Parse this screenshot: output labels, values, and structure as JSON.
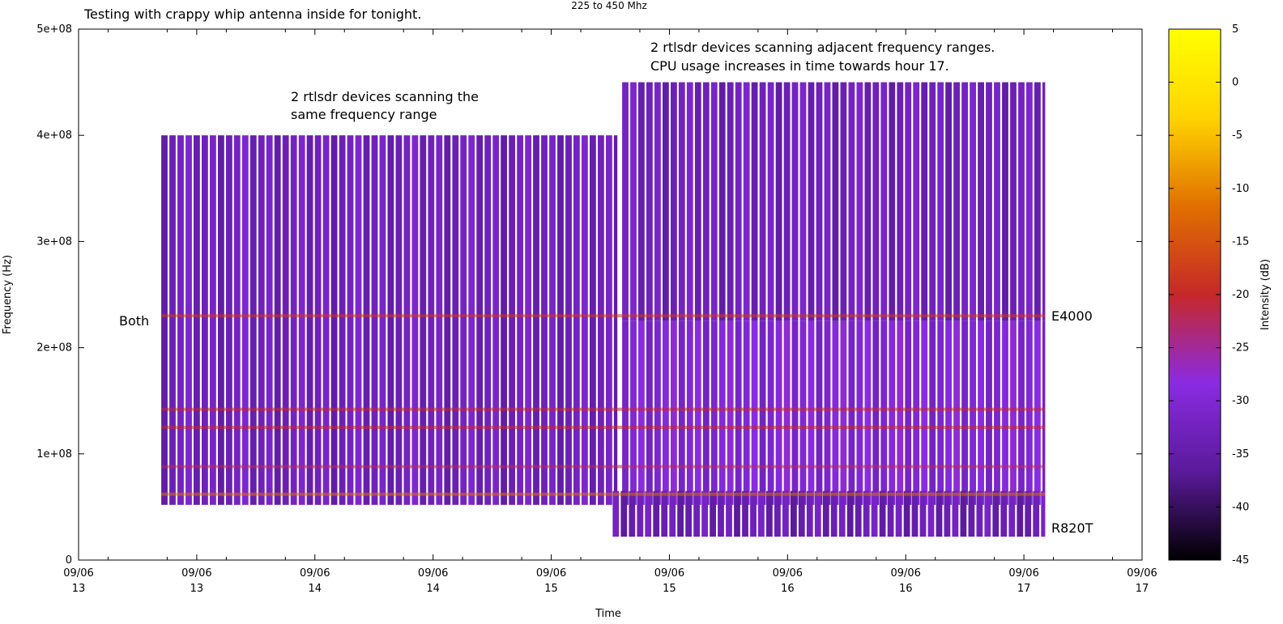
{
  "chart_data": {
    "type": "heatmap",
    "title": "225 to 450 Mhz",
    "xlabel": "Time",
    "ylabel": "Frequency (Hz)",
    "ylim": [
      0,
      500000000
    ],
    "y_ticks": [
      "0",
      "1e+08",
      "2e+08",
      "3e+08",
      "4e+08",
      "5e+08"
    ],
    "x_ticks": [
      {
        "date": "09/06",
        "hour": "13"
      },
      {
        "date": "09/06",
        "hour": "13"
      },
      {
        "date": "09/06",
        "hour": "14"
      },
      {
        "date": "09/06",
        "hour": "14"
      },
      {
        "date": "09/06",
        "hour": "15"
      },
      {
        "date": "09/06",
        "hour": "15"
      },
      {
        "date": "09/06",
        "hour": "16"
      },
      {
        "date": "09/06",
        "hour": "16"
      },
      {
        "date": "09/06",
        "hour": "17"
      },
      {
        "date": "09/06",
        "hour": "17"
      }
    ],
    "xlim": [
      13,
      17.5
    ],
    "colorbar": {
      "label": "Intensity (dB)",
      "range": [
        -45,
        5
      ],
      "ticks": [
        "5",
        "0",
        "-5",
        "-10",
        "-15",
        "-20",
        "-25",
        "-30",
        "-35",
        "-40",
        "-45"
      ],
      "colors": [
        "#000000",
        "#5a1a9a",
        "#8a2be2",
        "#c62828",
        "#e07000",
        "#ffd400",
        "#ffff00"
      ]
    },
    "scan_regions": [
      {
        "name": "Both",
        "t_start": 13.35,
        "t_end": 15.28,
        "f_min": 52000000,
        "f_max": 400000000,
        "level_db": -33
      },
      {
        "name": "E4000",
        "t_start": 15.3,
        "t_end": 17.09,
        "f_min": 225000000,
        "f_max": 450000000,
        "level_db": -33
      },
      {
        "name": "E4000",
        "t_start": 15.3,
        "t_end": 17.09,
        "f_min": 52000000,
        "f_max": 225000000,
        "level_db": -30
      },
      {
        "name": "R820T",
        "t_start": 15.26,
        "t_end": 17.09,
        "f_min": 22000000,
        "f_max": 65000000,
        "level_db": -34
      }
    ],
    "signal_bands": [
      {
        "f": 230000000,
        "level_db": -18
      },
      {
        "f": 142000000,
        "level_db": -20
      },
      {
        "f": 125000000,
        "level_db": -20
      },
      {
        "f": 88000000,
        "level_db": -22
      },
      {
        "f": 62000000,
        "level_db": -12
      }
    ],
    "annotations": {
      "top_left": "Testing with crappy whip antenna inside for tonight.",
      "same_range_line1": "2 rtlsdr devices scanning the",
      "same_range_line2": "same frequency range",
      "adjacent_line1": "2 rtlsdr devices scanning adjacent frequency ranges.",
      "adjacent_line2": "CPU usage increases in time towards hour 17.",
      "both": "Both",
      "e4000": "E4000",
      "r820t": "R820T"
    }
  }
}
